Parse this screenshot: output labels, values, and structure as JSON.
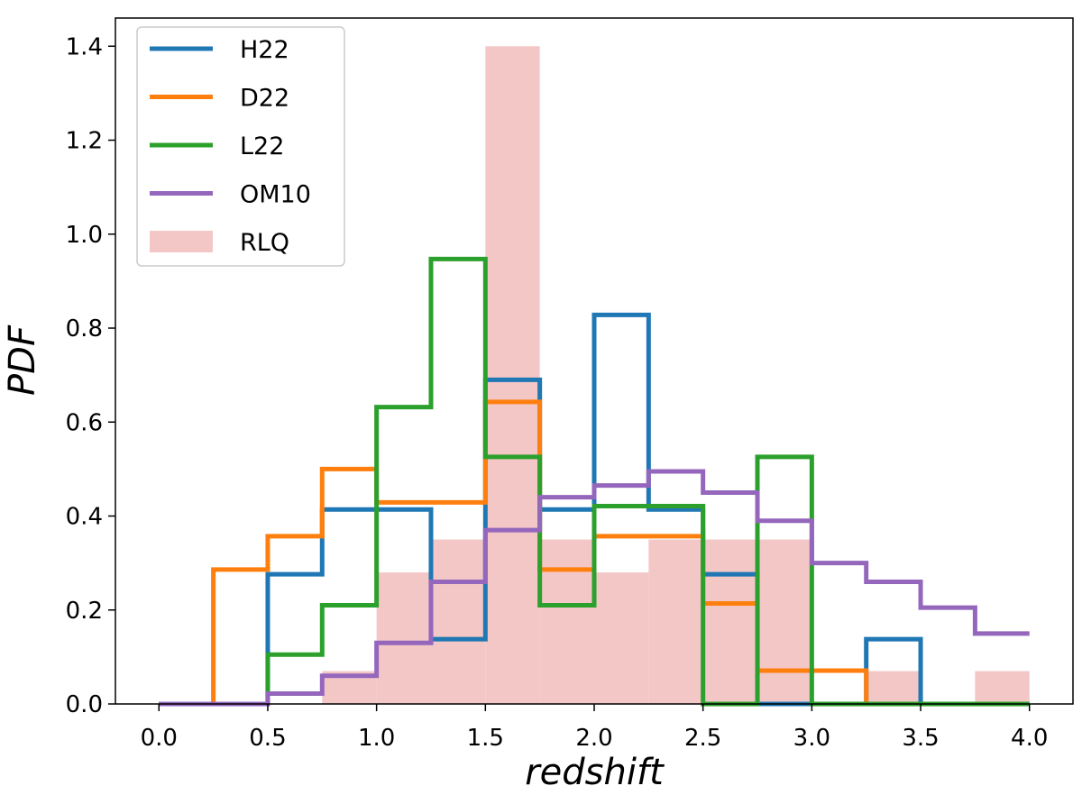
{
  "chart_data": {
    "type": "histogram-step",
    "title": "",
    "xlabel": "redshift",
    "ylabel": "PDF",
    "xlim": [
      -0.2,
      4.2
    ],
    "ylim": [
      0.0,
      1.46
    ],
    "bin_edges": [
      0.0,
      0.25,
      0.5,
      0.75,
      1.0,
      1.25,
      1.5,
      1.75,
      2.0,
      2.25,
      2.5,
      2.75,
      3.0,
      3.25,
      3.5,
      3.75,
      4.0
    ],
    "xticks": [
      "0.0",
      "0.5",
      "1.0",
      "1.5",
      "2.0",
      "2.5",
      "3.0",
      "3.5",
      "4.0"
    ],
    "yticks": [
      "0.0",
      "0.2",
      "0.4",
      "0.6",
      "0.8",
      "1.0",
      "1.2",
      "1.4"
    ],
    "legend_position": "top-left",
    "series": [
      {
        "name": "H22",
        "style": "step",
        "color": "#1f77b4",
        "values": [
          0.0,
          0.0,
          0.276,
          0.414,
          0.414,
          0.138,
          0.69,
          0.414,
          0.828,
          0.414,
          0.276,
          0.0,
          0.0,
          0.138,
          0.0,
          0.0
        ]
      },
      {
        "name": "D22",
        "style": "step",
        "color": "#ff7f0e",
        "values": [
          0.0,
          0.286,
          0.357,
          0.5,
          0.429,
          0.429,
          0.643,
          0.286,
          0.357,
          0.357,
          0.214,
          0.071,
          0.071,
          0.0,
          0.0,
          0.0
        ]
      },
      {
        "name": "L22",
        "style": "step",
        "color": "#2ca02c",
        "values": [
          0.0,
          0.0,
          0.105,
          0.21,
          0.632,
          0.947,
          0.526,
          0.21,
          0.421,
          0.421,
          0.0,
          0.526,
          0.0,
          0.0,
          0.0,
          0.0
        ]
      },
      {
        "name": "OM10",
        "style": "step",
        "color": "#9467bd",
        "values": [
          0.0,
          0.0,
          0.022,
          0.06,
          0.13,
          0.26,
          0.37,
          0.44,
          0.465,
          0.495,
          0.45,
          0.39,
          0.3,
          0.26,
          0.205,
          0.15
        ]
      },
      {
        "name": "RLQ",
        "style": "filled",
        "color": "#f4c7c7",
        "values": [
          0.0,
          0.0,
          0.0,
          0.07,
          0.28,
          0.35,
          1.4,
          0.35,
          0.28,
          0.35,
          0.35,
          0.35,
          0.0,
          0.07,
          0.0,
          0.07
        ]
      }
    ]
  }
}
